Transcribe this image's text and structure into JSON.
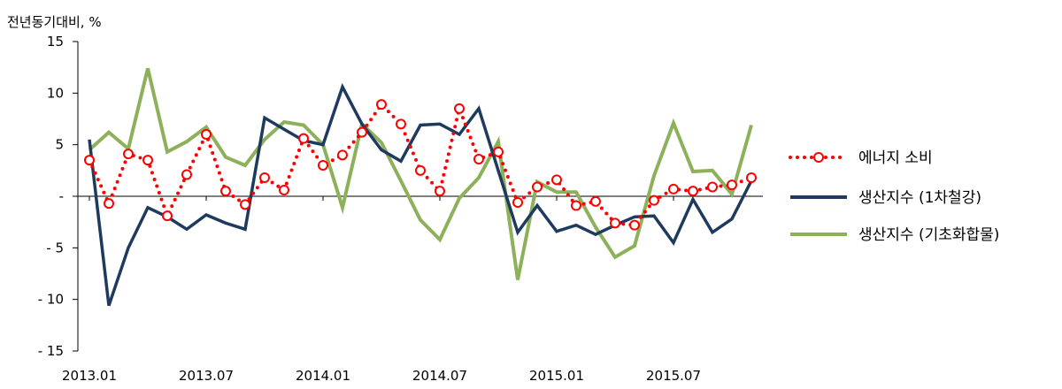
{
  "chart_data": {
    "type": "line",
    "ylabel": "전년동기대비, %",
    "ylim": [
      -15,
      15
    ],
    "y_ticks": [
      {
        "value": 15,
        "label": "15"
      },
      {
        "value": 10,
        "label": "10"
      },
      {
        "value": 5,
        "label": "5"
      },
      {
        "value": 0,
        "label": "-"
      },
      {
        "value": -5,
        "label": "- 5"
      },
      {
        "value": -10,
        "label": "- 10"
      },
      {
        "value": -15,
        "label": "- 15"
      }
    ],
    "x_ticks": [
      {
        "index": 0,
        "label": "2013.01"
      },
      {
        "index": 6,
        "label": "2013.07"
      },
      {
        "index": 12,
        "label": "2014.01"
      },
      {
        "index": 18,
        "label": "2014.07"
      },
      {
        "index": 24,
        "label": "2015.01"
      },
      {
        "index": 30,
        "label": "2015.07"
      }
    ],
    "legend_position": "right",
    "series": [
      {
        "name": "에너지 소비",
        "color": "#ff0000",
        "style": "dotted-circle-markers",
        "values": [
          3.5,
          -0.7,
          4.1,
          3.5,
          -1.9,
          2.1,
          6.0,
          0.5,
          -0.8,
          1.8,
          0.6,
          5.6,
          3.0,
          4.0,
          6.2,
          8.9,
          7.0,
          2.5,
          0.5,
          8.5,
          3.6,
          4.3,
          -0.6,
          0.9,
          1.6,
          -0.9,
          -0.5,
          -2.6,
          -2.8,
          -0.4,
          0.7,
          0.5,
          0.9,
          1.1,
          1.8
        ]
      },
      {
        "name": "생산지수 (1차철강)",
        "color": "#1f3a5f",
        "style": "solid",
        "values": [
          5.5,
          -10.6,
          -5.0,
          -1.1,
          -2.0,
          -3.2,
          -1.8,
          -2.6,
          -3.2,
          7.6,
          6.5,
          5.4,
          5.0,
          10.6,
          7.0,
          4.5,
          3.4,
          6.9,
          7.0,
          6.0,
          8.5,
          2.5,
          -3.5,
          -0.9,
          -3.4,
          -2.8,
          -3.7,
          -2.8,
          -2.0,
          -1.9,
          -4.5,
          -0.3,
          -3.5,
          -2.2,
          1.5
        ]
      },
      {
        "name": "생산지수 (기초화합물)",
        "color": "#8db05a",
        "style": "solid",
        "values": [
          4.5,
          6.2,
          4.6,
          12.4,
          4.3,
          5.3,
          6.7,
          3.8,
          3.0,
          5.5,
          7.2,
          6.9,
          5.0,
          -1.1,
          7.0,
          5.2,
          1.5,
          -2.3,
          -4.2,
          -0.2,
          1.8,
          5.3,
          -8.1,
          1.4,
          0.4,
          0.4,
          -3.0,
          -5.9,
          -4.8,
          2.0,
          7.1,
          2.4,
          2.5,
          0.2,
          6.9
        ]
      }
    ]
  }
}
